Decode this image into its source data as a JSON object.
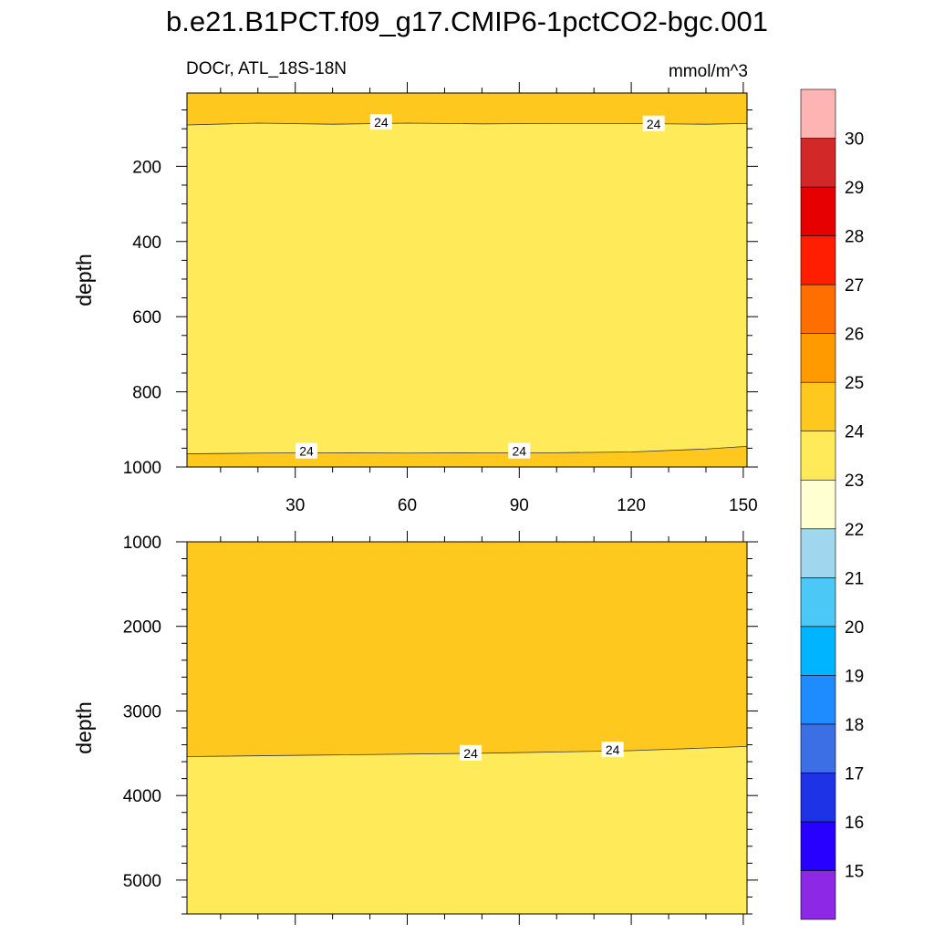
{
  "figure": {
    "title": "b.e21.B1PCT.f09_g17.CMIP6-1pctCO2-bgc.001",
    "left_label": "DOCr, ATL_18S-18N",
    "right_label": "mmol/m^3"
  },
  "colors": {
    "band_23_24": "#ffeb5a",
    "band_24_25": "#ffc81e",
    "band_25_26": "#ff9a00",
    "contour_line": "#3a3a3a"
  },
  "colorbar": {
    "levels": [
      "15",
      "16",
      "17",
      "18",
      "19",
      "20",
      "21",
      "22",
      "23",
      "24",
      "25",
      "26",
      "27",
      "28",
      "29",
      "30"
    ],
    "colors": [
      "#8c28e6",
      "#2800ff",
      "#1e32e6",
      "#3c6ee6",
      "#1e8cff",
      "#00b4ff",
      "#4bc8f5",
      "#a0d7ee",
      "#ffffd2",
      "#ffeb5a",
      "#ffc81e",
      "#ff9a00",
      "#ff6e00",
      "#ff1e00",
      "#e60000",
      "#d22828",
      "#ffb4b4"
    ]
  },
  "chart_data": [
    {
      "type": "contour",
      "panel": "upper",
      "xlabel": "",
      "ylabel": "depth",
      "xlim": [
        1,
        151
      ],
      "ylim": [
        1000,
        5
      ],
      "xticks": [
        "30",
        "60",
        "90",
        "120",
        "150"
      ],
      "yticks": [
        "200",
        "400",
        "600",
        "800",
        "1000"
      ],
      "base_value_band": "23-24",
      "regions": [
        {
          "band": "24-25",
          "between": "top",
          "contour": {
            "x": [
              1,
              20,
              40,
              60,
              80,
              100,
              120,
              140,
              151
            ],
            "y": [
              90,
              85,
              88,
              85,
              87,
              86,
              86,
              88,
              86
            ]
          }
        },
        {
          "band": "24-25",
          "between": "bottom",
          "contour": {
            "x": [
              1,
              20,
              40,
              60,
              80,
              100,
              120,
              140,
              151
            ],
            "y": [
              965,
              963,
              962,
              963,
              962,
              962,
              960,
              952,
              945
            ]
          }
        }
      ],
      "contour_labels": [
        {
          "text": "24",
          "x": 53,
          "y": 83
        },
        {
          "text": "24",
          "x": 126,
          "y": 87
        },
        {
          "text": "24",
          "x": 33,
          "y": 958
        },
        {
          "text": "24",
          "x": 90,
          "y": 958
        }
      ]
    },
    {
      "type": "contour",
      "panel": "lower",
      "xlabel": "",
      "ylabel": "depth",
      "xlim": [
        1,
        151
      ],
      "ylim": [
        5400,
        1000
      ],
      "xticks": [
        "30",
        "60",
        "90",
        "120",
        "150"
      ],
      "yticks": [
        "1000",
        "2000",
        "3000",
        "4000",
        "5000"
      ],
      "base_value_band": "23-24",
      "regions": [
        {
          "band": "24-25",
          "between": "top",
          "contour": {
            "x": [
              1,
              40,
              80,
              120,
              151
            ],
            "y": [
              3540,
              3520,
              3500,
              3470,
              3420
            ]
          }
        }
      ],
      "contour_labels": [
        {
          "text": "24",
          "x": 77,
          "y": 3500
        },
        {
          "text": "24",
          "x": 115,
          "y": 3460
        }
      ]
    }
  ]
}
